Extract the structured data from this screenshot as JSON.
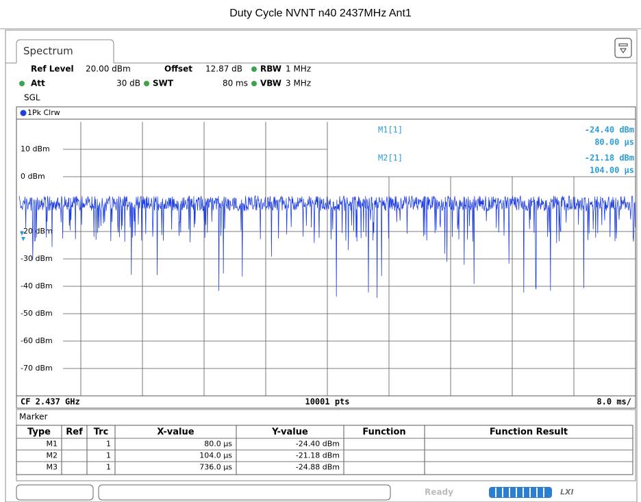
{
  "title": "Duty Cycle NVNT n40 2437MHz Ant1",
  "tab": "Spectrum",
  "settings": [
    {
      "name": "Ref Level",
      "value": "20.00 dBm"
    },
    {
      "name": "Offset",
      "value": "12.87 dB"
    },
    {
      "name": "RBW",
      "value": "1 MHz"
    },
    {
      "name": "Att",
      "value": "30 dB"
    },
    {
      "name": "SWT",
      "value": "80 ms"
    },
    {
      "name": "VBW",
      "value": "3 MHz"
    }
  ],
  "mode": "SGL",
  "trace_label": "1Pk Clrw",
  "chart_data": {
    "type": "line",
    "ylim": [
      -80,
      20
    ],
    "yticks": [
      {
        "value": 10,
        "label": "10 dBm"
      },
      {
        "value": 0,
        "label": "0 dBm"
      },
      {
        "value": -20,
        "label": "-20 dBm"
      },
      {
        "value": -30,
        "label": "-30 dBm"
      },
      {
        "value": -40,
        "label": "-40 dBm"
      },
      {
        "value": -50,
        "label": "-50 dBm"
      },
      {
        "value": -60,
        "label": "-60 dBm"
      },
      {
        "value": -70,
        "label": "-70 dBm"
      }
    ],
    "grid": true,
    "color": "#1f3fe0"
  },
  "readouts": [
    {
      "name": "M1[1]",
      "level": "-24.40 dBm",
      "time": "80.00 µs"
    },
    {
      "name": "M2[1]",
      "level": "-21.18 dBm",
      "time": "104.00 µs"
    }
  ],
  "footer": {
    "center": "CF 2.437 GHz",
    "points": "10001 pts",
    "scale": "8.0 ms/"
  },
  "marker_table": {
    "title": "Marker",
    "columns": [
      "Type",
      "Ref",
      "Trc",
      "X-value",
      "Y-value",
      "Function",
      "Function Result"
    ],
    "rows": [
      {
        "type": "M1",
        "trc": "1",
        "x": "80.0 µs",
        "y": "-24.40 dBm"
      },
      {
        "type": "M2",
        "trc": "1",
        "x": "104.0 µs",
        "y": "-21.18 dBm"
      },
      {
        "type": "M3",
        "trc": "1",
        "x": "736.0 µs",
        "y": "-24.88 dBm"
      }
    ]
  },
  "status": "Ready"
}
